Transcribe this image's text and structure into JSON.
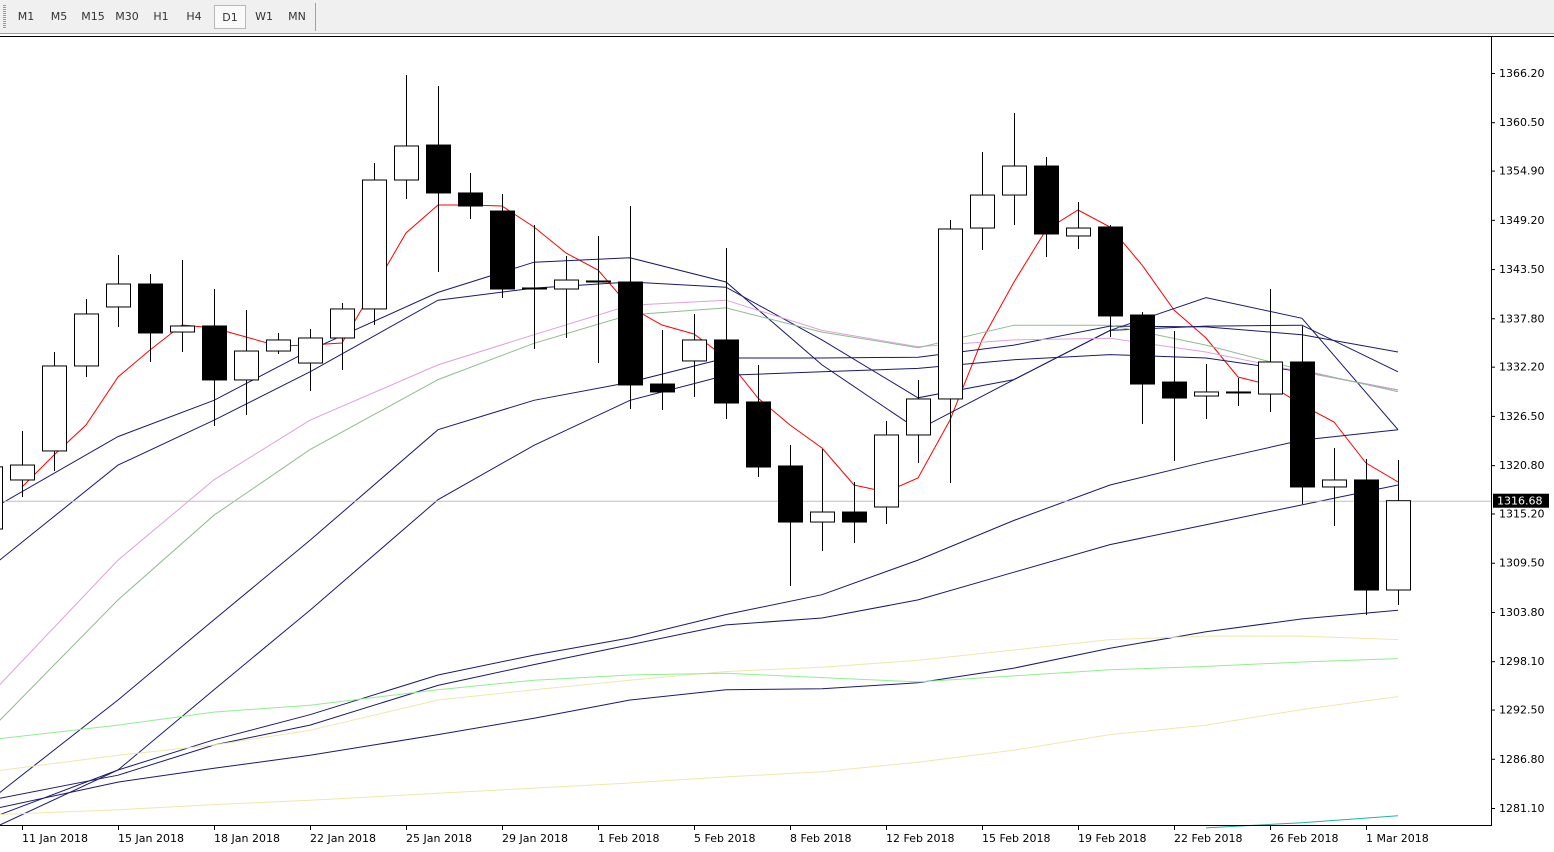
{
  "toolbar": {
    "timeframes": [
      "M1",
      "M5",
      "M15",
      "M30",
      "H1",
      "H4",
      "D1",
      "W1",
      "MN"
    ],
    "selected": "D1"
  },
  "chart_data": {
    "type": "candlestick",
    "price_ticks": [
      "1366.20",
      "1360.50",
      "1354.90",
      "1349.20",
      "1343.50",
      "1337.80",
      "1332.20",
      "1326.50",
      "1320.80",
      "1315.20",
      "1309.50",
      "1303.80",
      "1298.10",
      "1292.50",
      "1286.80",
      "1281.10"
    ],
    "time_labels": [
      {
        "label": "11 Jan 2018",
        "index": 1
      },
      {
        "label": "15 Jan 2018",
        "index": 4
      },
      {
        "label": "18 Jan 2018",
        "index": 7
      },
      {
        "label": "22 Jan 2018",
        "index": 10
      },
      {
        "label": "25 Jan 2018",
        "index": 13
      },
      {
        "label": "29 Jan 2018",
        "index": 16
      },
      {
        "label": "1 Feb 2018",
        "index": 19
      },
      {
        "label": "5 Feb 2018",
        "index": 22
      },
      {
        "label": "8 Feb 2018",
        "index": 25
      },
      {
        "label": "12 Feb 2018",
        "index": 28
      },
      {
        "label": "15 Feb 2018",
        "index": 31
      },
      {
        "label": "19 Feb 2018",
        "index": 34
      },
      {
        "label": "22 Feb 2018",
        "index": 37
      },
      {
        "label": "26 Feb 2018",
        "index": 40
      },
      {
        "label": "1 Mar 2018",
        "index": 43
      }
    ],
    "y_range": [
      1279.1,
      1370.4
    ],
    "current_price": "1316.68",
    "colors": {
      "bull_body": "#ffffff",
      "bear_body": "#000000",
      "wick": "#000000",
      "price_line": "#c0c0c0"
    },
    "candles": [
      [
        1313.4,
        1320.6,
        1313.4,
        1320.6
      ],
      [
        1319.08,
        1324.75,
        1317.11,
        1320.81
      ],
      [
        1322.44,
        1333.9,
        1320.12,
        1332.28
      ],
      [
        1332.28,
        1340.03,
        1331.0,
        1338.3
      ],
      [
        1339.11,
        1345.13,
        1336.79,
        1341.77
      ],
      [
        1341.77,
        1342.93,
        1332.74,
        1336.1
      ],
      [
        1336.21,
        1344.55,
        1333.9,
        1336.91
      ],
      [
        1336.91,
        1341.19,
        1325.33,
        1330.66
      ],
      [
        1330.66,
        1338.76,
        1326.6,
        1334.01
      ],
      [
        1334.01,
        1336.1,
        1333.67,
        1335.29
      ],
      [
        1332.62,
        1336.56,
        1329.38,
        1335.52
      ],
      [
        1335.52,
        1339.57,
        1331.81,
        1338.88
      ],
      [
        1338.88,
        1355.78,
        1337.02,
        1353.81
      ],
      [
        1353.81,
        1365.97,
        1351.61,
        1357.75
      ],
      [
        1357.86,
        1364.69,
        1343.16,
        1352.31
      ],
      [
        1352.31,
        1354.62,
        1349.3,
        1350.8
      ],
      [
        1350.22,
        1352.19,
        1340.15,
        1341.19
      ],
      [
        1341.31,
        1348.6,
        1334.24,
        1341.19
      ],
      [
        1341.19,
        1345.01,
        1335.52,
        1342.23
      ],
      [
        1342.12,
        1347.33,
        1332.62,
        1342.0
      ],
      [
        1342.0,
        1350.8,
        1327.3,
        1330.08
      ],
      [
        1330.19,
        1336.44,
        1327.18,
        1329.27
      ],
      [
        1332.86,
        1338.3,
        1328.69,
        1335.29
      ],
      [
        1335.29,
        1345.94,
        1326.14,
        1327.99
      ],
      [
        1328.11,
        1332.39,
        1319.42,
        1320.58
      ],
      [
        1320.7,
        1323.13,
        1306.8,
        1314.21
      ],
      [
        1314.21,
        1322.67,
        1310.86,
        1315.37
      ],
      [
        1315.37,
        1318.85,
        1311.78,
        1314.21
      ],
      [
        1315.95,
        1325.91,
        1313.98,
        1324.29
      ],
      [
        1324.29,
        1330.66,
        1321.05,
        1328.46
      ],
      [
        1328.46,
        1349.18,
        1318.73,
        1348.14
      ],
      [
        1348.25,
        1357.05,
        1345.71,
        1352.07
      ],
      [
        1352.07,
        1361.57,
        1348.6,
        1355.43
      ],
      [
        1355.43,
        1356.47,
        1344.9,
        1347.56
      ],
      [
        1347.33,
        1351.26,
        1345.82,
        1348.25
      ],
      [
        1348.37,
        1348.6,
        1335.63,
        1338.07
      ],
      [
        1338.18,
        1338.53,
        1325.56,
        1330.19
      ],
      [
        1330.42,
        1336.33,
        1321.28,
        1328.57
      ],
      [
        1328.8,
        1332.51,
        1326.14,
        1329.27
      ],
      [
        1329.27,
        1330.89,
        1327.65,
        1329.27
      ],
      [
        1329.03,
        1341.19,
        1326.95,
        1332.74
      ],
      [
        1332.74,
        1336.91,
        1316.3,
        1318.27
      ],
      [
        1318.27,
        1322.78,
        1313.75,
        1319.08
      ],
      [
        1319.08,
        1321.51,
        1303.45,
        1306.34
      ],
      [
        1306.34,
        1321.39,
        1304.61,
        1316.68
      ]
    ],
    "candle_fields": [
      "open",
      "high",
      "low",
      "close"
    ],
    "indicators": [
      {
        "color": "#ff0000",
        "index": [
          1,
          2,
          3,
          4,
          5,
          6,
          7,
          8,
          9,
          10,
          11,
          12,
          13,
          14,
          15,
          16,
          17,
          18,
          19,
          20,
          21,
          22,
          23,
          24,
          25,
          26,
          27,
          28,
          29,
          30,
          31,
          32,
          33,
          34,
          35,
          36,
          37,
          38,
          39,
          40,
          41,
          42,
          43,
          44
        ],
        "values": [
          1318.27,
          1321.97,
          1325.45,
          1331.0,
          1334.13,
          1337.02,
          1336.68,
          1335.63,
          1334.59,
          1334.71,
          1334.94,
          1341.31,
          1347.68,
          1350.92,
          1350.92,
          1350.8,
          1348.37,
          1345.36,
          1343.39,
          1339.11,
          1337.02,
          1335.98,
          1333.2,
          1328.57,
          1325.45,
          1322.78,
          1318.5,
          1317.69,
          1319.31,
          1326.02,
          1335.29,
          1342.0,
          1348.02,
          1350.34,
          1348.37,
          1343.97,
          1338.76,
          1335.52,
          1331.0,
          1330.08,
          1327.76,
          1325.79,
          1321.05,
          1318.85
        ]
      },
      {
        "color": "#191970",
        "index": [
          0,
          4,
          7,
          10,
          14,
          17,
          20,
          23,
          26,
          29,
          32,
          35,
          38,
          41,
          44
        ],
        "values": [
          1315.6,
          1324.1,
          1328.3,
          1334.1,
          1340.8,
          1344.3,
          1344.8,
          1342.0,
          1332.4,
          1324.9,
          1330.7,
          1336.4,
          1340.2,
          1337.8,
          1324.9
        ]
      },
      {
        "color": "#191970",
        "index": [
          0,
          4,
          7,
          10,
          14,
          17,
          20,
          23,
          26,
          29,
          32,
          35,
          38,
          41,
          44
        ],
        "values": [
          1308.9,
          1320.8,
          1326.0,
          1331.6,
          1339.9,
          1341.3,
          1342.0,
          1341.4,
          1335.3,
          1328.6,
          1330.7,
          1336.4,
          1336.9,
          1337.0,
          1331.6
        ]
      },
      {
        "color": "#191970",
        "index": [
          0,
          4,
          7,
          10,
          14,
          17,
          20,
          23,
          26,
          29,
          32,
          35,
          38,
          41,
          44
        ],
        "values": [
          1282.0,
          1293.6,
          1302.9,
          1312.1,
          1324.9,
          1328.3,
          1330.4,
          1333.2,
          1333.2,
          1333.3,
          1334.7,
          1336.9,
          1336.8,
          1335.9,
          1333.9
        ]
      },
      {
        "color": "#191970",
        "index": [
          0,
          4,
          7,
          10,
          14,
          17,
          20,
          23,
          26,
          29,
          32,
          35,
          38,
          41,
          44
        ],
        "values": [
          1278.6,
          1285.5,
          1294.8,
          1304.0,
          1316.8,
          1323.1,
          1328.3,
          1331.2,
          1331.6,
          1332.0,
          1333.0,
          1333.6,
          1333.2,
          1331.6,
          1329.5
        ]
      },
      {
        "color": "#dda0dd",
        "index": [
          0,
          4,
          7,
          10,
          14,
          17,
          20,
          23,
          26,
          29,
          32,
          35,
          38,
          41,
          44
        ],
        "values": [
          1294.2,
          1309.8,
          1319.1,
          1326.0,
          1332.4,
          1335.9,
          1339.3,
          1339.9,
          1336.4,
          1334.5,
          1335.3,
          1335.5,
          1333.9,
          1331.6,
          1329.5
        ]
      },
      {
        "color": "#8fbc8f",
        "index": [
          0,
          4,
          7,
          10,
          14,
          17,
          20,
          23,
          26,
          29,
          32,
          35,
          38,
          41,
          44
        ],
        "values": [
          1290.1,
          1305.2,
          1315.0,
          1322.6,
          1330.7,
          1334.9,
          1338.2,
          1339.0,
          1336.2,
          1334.4,
          1337.0,
          1337.0,
          1334.7,
          1331.8,
          1329.3
        ]
      },
      {
        "color": "#191970",
        "index": [
          0,
          4,
          7,
          10,
          14,
          17,
          20,
          23,
          26,
          29,
          32,
          35,
          38,
          41,
          44
        ],
        "values": [
          1279.9,
          1285.5,
          1289.0,
          1291.9,
          1296.5,
          1298.8,
          1300.8,
          1303.5,
          1305.8,
          1309.8,
          1314.4,
          1318.5,
          1321.2,
          1323.7,
          1324.9
        ]
      },
      {
        "color": "#191970",
        "index": [
          0,
          4,
          7,
          10,
          14,
          17,
          20,
          23,
          26,
          29,
          32,
          35,
          38,
          41,
          44
        ],
        "values": [
          1282.0,
          1284.9,
          1288.4,
          1290.7,
          1295.3,
          1297.7,
          1300.0,
          1302.3,
          1303.1,
          1305.2,
          1308.4,
          1311.6,
          1313.9,
          1316.2,
          1318.5
        ]
      },
      {
        "color": "#191970",
        "index": [
          0,
          4,
          7,
          10,
          14,
          17,
          20,
          23,
          26,
          29,
          32,
          35,
          38,
          41,
          44
        ],
        "values": [
          1280.9,
          1284.1,
          1285.7,
          1287.2,
          1289.6,
          1291.5,
          1293.6,
          1294.8,
          1294.9,
          1295.6,
          1297.3,
          1299.6,
          1301.5,
          1303.0,
          1304.0
        ]
      },
      {
        "color": "#eee8aa",
        "index": [
          0,
          4,
          7,
          10,
          14,
          17,
          20,
          23,
          26,
          29,
          32,
          35,
          38,
          41,
          44
        ],
        "values": [
          1285.3,
          1287.2,
          1288.4,
          1290.1,
          1293.6,
          1294.8,
          1295.9,
          1296.9,
          1297.4,
          1298.2,
          1299.4,
          1300.6,
          1301.0,
          1301.0,
          1300.6
        ]
      },
      {
        "color": "#90ee90",
        "index": [
          0,
          4,
          7,
          10,
          14,
          17,
          20,
          23,
          26,
          29,
          32,
          35,
          38,
          41,
          44
        ],
        "values": [
          1289.0,
          1290.7,
          1292.2,
          1293.0,
          1294.8,
          1295.9,
          1296.5,
          1296.7,
          1296.2,
          1295.7,
          1296.4,
          1297.1,
          1297.5,
          1298.0,
          1298.4
        ]
      },
      {
        "color": "#eee8aa",
        "index": [
          0,
          4,
          7,
          10,
          14,
          17,
          20,
          23,
          26,
          29,
          32,
          35,
          38,
          41,
          44
        ],
        "values": [
          1280.3,
          1280.9,
          1281.5,
          1282.0,
          1282.8,
          1283.4,
          1284.0,
          1284.7,
          1285.3,
          1286.4,
          1287.8,
          1289.6,
          1290.7,
          1292.5,
          1294.0
        ]
      },
      {
        "color": "#20b2aa",
        "index": [
          38,
          41,
          44
        ],
        "values": [
          1278.8,
          1279.4,
          1280.2
        ]
      }
    ]
  }
}
